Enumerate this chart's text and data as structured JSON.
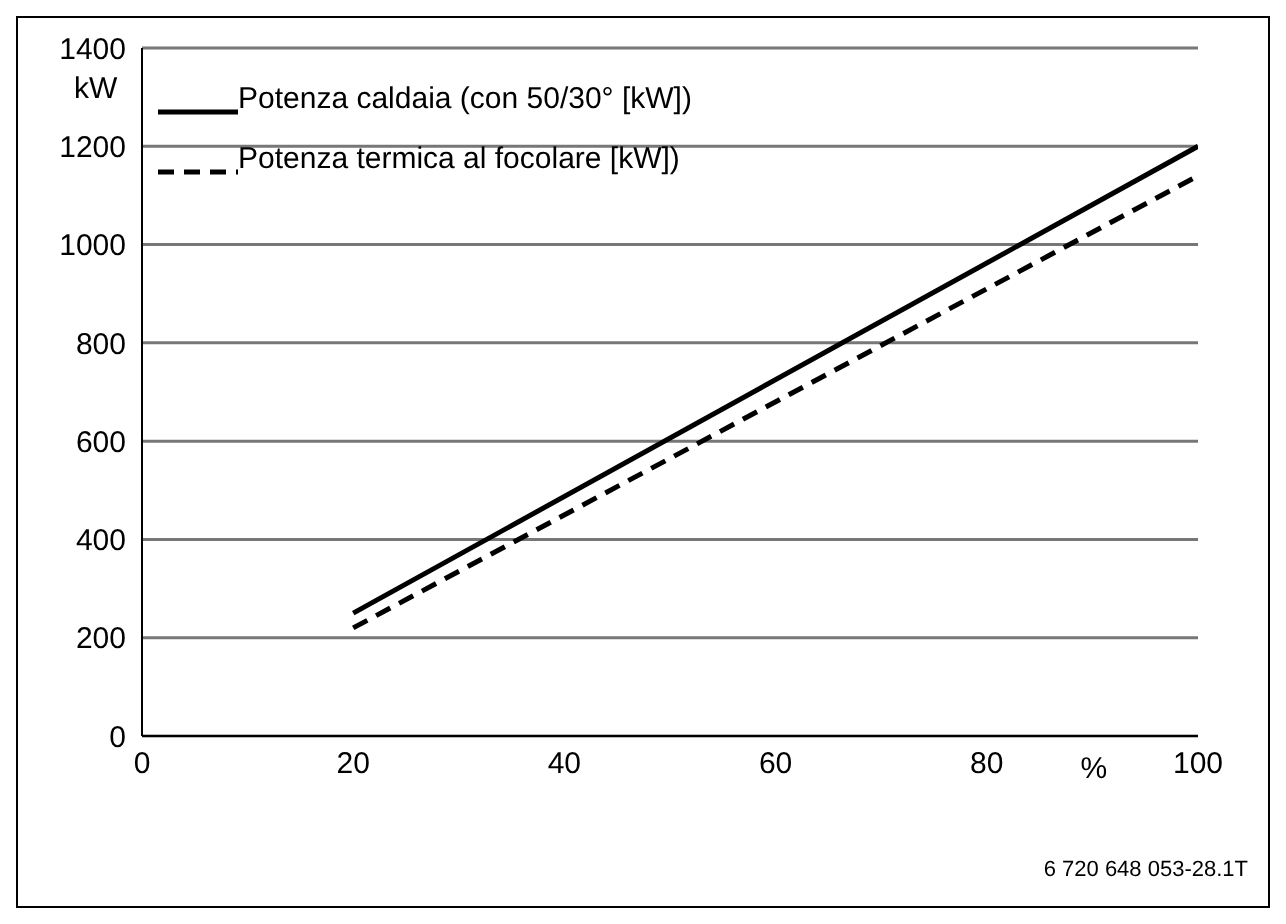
{
  "chart_data": {
    "type": "line",
    "xlabel": "%",
    "ylabel": "kW",
    "x": [
      20,
      100
    ],
    "series": [
      {
        "name": "Potenza caldaia (con 50/30° [kW])",
        "color": "#000000",
        "values": [
          250,
          1200
        ],
        "line_style": "solid"
      },
      {
        "name": "Potenza termica al focolare [kW])",
        "color": "#000000",
        "values": [
          220,
          1140
        ],
        "line_style": "dashed"
      }
    ],
    "xlim": [
      0,
      100
    ],
    "xticks": [
      0,
      20,
      40,
      60,
      80,
      100
    ],
    "ylim": [
      0,
      1400
    ],
    "yticks": [
      0,
      200,
      400,
      600,
      800,
      1000,
      1200,
      1400
    ],
    "grid": "y",
    "legend": "top left",
    "marker": "none",
    "annotations": [
      "6 720 648 053-28.1T"
    ]
  }
}
